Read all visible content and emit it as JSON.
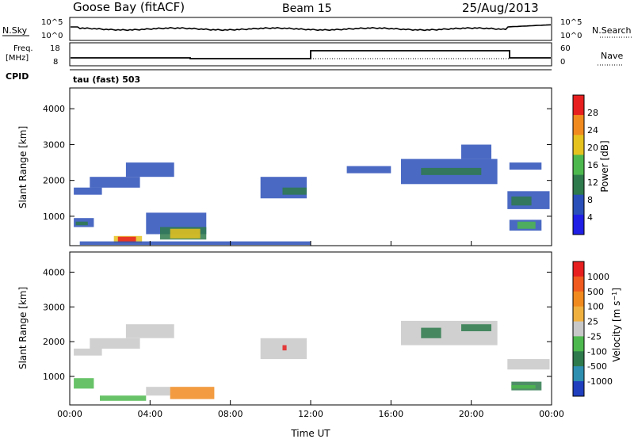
{
  "header": {
    "station": "Goose Bay (fitACF)",
    "beam": "Beam 15",
    "date": "25/Aug/2013"
  },
  "noise_panel": {
    "left_label": "N.Sky",
    "right_label": "N.Search",
    "left_ticks": [
      "10^5",
      "10^0"
    ],
    "right_ticks": [
      "10^5",
      "10^0"
    ]
  },
  "freq_panel": {
    "left_label_1": "Freq.",
    "left_label_2": "[MHz]",
    "left_ticks": [
      "18",
      "8"
    ],
    "right_label": "Nave",
    "right_ticks": [
      "60",
      "0"
    ],
    "cpid_label": "CPID",
    "cpid_value": "tau (fast) 503"
  },
  "chart_data": [
    {
      "type": "heatmap",
      "name": "power",
      "ylabel": "Slant Range [km]",
      "xlabel": "Time UT",
      "x_ticks": [
        "00:00",
        "04:00",
        "08:00",
        "12:00",
        "16:00",
        "20:00",
        "00:00"
      ],
      "y_ticks": [
        "1000",
        "2000",
        "3000",
        "4000"
      ],
      "xlim_hours": [
        0,
        24
      ],
      "ylim_km": [
        180,
        4580
      ],
      "colorbar": {
        "label": "Power [dB]",
        "ticks": [
          "4",
          "8",
          "12",
          "16",
          "20",
          "24",
          "28"
        ],
        "colors": [
          "#1f1fe6",
          "#2a4fb8",
          "#2e7a4c",
          "#4db84d",
          "#e6c21f",
          "#f08a1f",
          "#e81f1f"
        ]
      },
      "regions": [
        {
          "t": [
            0.2,
            1.6
          ],
          "r": [
            1600,
            1800
          ],
          "c": "#2a4fb8"
        },
        {
          "t": [
            1.0,
            3.5
          ],
          "r": [
            1800,
            2100
          ],
          "c": "#2a4fb8"
        },
        {
          "t": [
            2.8,
            5.2
          ],
          "r": [
            2100,
            2500
          ],
          "c": "#2a4fb8"
        },
        {
          "t": [
            0.2,
            1.2
          ],
          "r": [
            700,
            950
          ],
          "c": "#2a4fb8"
        },
        {
          "t": [
            0.3,
            0.9
          ],
          "r": [
            750,
            850
          ],
          "c": "#2e7a4c"
        },
        {
          "t": [
            3.8,
            6.8
          ],
          "r": [
            500,
            1100
          ],
          "c": "#2a4fb8"
        },
        {
          "t": [
            4.5,
            6.8
          ],
          "r": [
            350,
            700
          ],
          "c": "#2e7a4c"
        },
        {
          "t": [
            5.0,
            6.5
          ],
          "r": [
            380,
            650
          ],
          "c": "#e6c21f"
        },
        {
          "t": [
            2.2,
            3.6
          ],
          "r": [
            250,
            450
          ],
          "c": "#e6c21f"
        },
        {
          "t": [
            2.4,
            3.3
          ],
          "r": [
            280,
            430
          ],
          "c": "#e81f1f"
        },
        {
          "t": [
            0.5,
            12.0
          ],
          "r": [
            200,
            300
          ],
          "c": "#2a4fb8"
        },
        {
          "t": [
            9.5,
            11.8
          ],
          "r": [
            1500,
            2100
          ],
          "c": "#2a4fb8"
        },
        {
          "t": [
            10.6,
            11.8
          ],
          "r": [
            1600,
            1800
          ],
          "c": "#2e7a4c"
        },
        {
          "t": [
            13.8,
            16.0
          ],
          "r": [
            2200,
            2400
          ],
          "c": "#2a4fb8"
        },
        {
          "t": [
            16.5,
            21.3
          ],
          "r": [
            1900,
            2600
          ],
          "c": "#2a4fb8"
        },
        {
          "t": [
            17.5,
            20.5
          ],
          "r": [
            2150,
            2350
          ],
          "c": "#2e7a4c"
        },
        {
          "t": [
            19.5,
            21.0
          ],
          "r": [
            2600,
            3000
          ],
          "c": "#2a4fb8"
        },
        {
          "t": [
            21.8,
            23.9
          ],
          "r": [
            1200,
            1700
          ],
          "c": "#2a4fb8"
        },
        {
          "t": [
            22.0,
            23.0
          ],
          "r": [
            1300,
            1550
          ],
          "c": "#2e7a4c"
        },
        {
          "t": [
            21.9,
            23.5
          ],
          "r": [
            2300,
            2500
          ],
          "c": "#2a4fb8"
        },
        {
          "t": [
            21.9,
            23.5
          ],
          "r": [
            600,
            900
          ],
          "c": "#2a4fb8"
        },
        {
          "t": [
            22.3,
            23.2
          ],
          "r": [
            650,
            850
          ],
          "c": "#4db84d"
        }
      ]
    },
    {
      "type": "heatmap",
      "name": "velocity",
      "ylabel": "Slant Range [km]",
      "xlabel": "Time UT",
      "x_ticks": [
        "00:00",
        "04:00",
        "08:00",
        "12:00",
        "16:00",
        "20:00",
        "00:00"
      ],
      "y_ticks": [
        "1000",
        "2000",
        "3000",
        "4000"
      ],
      "xlim_hours": [
        0,
        24
      ],
      "ylim_km": [
        180,
        4580
      ],
      "colorbar": {
        "label": "Velocity [m s^-1]",
        "ticks": [
          "1000",
          "500",
          "100",
          "25",
          "-25",
          "-100",
          "-500",
          "-1000"
        ],
        "colors": [
          "#1f3fbf",
          "#2e8fb0",
          "#2e7a4c",
          "#4db84d",
          "#c8c8c8",
          "#f0b040",
          "#f08a1f",
          "#f05a1f",
          "#e81f1f"
        ]
      },
      "regions": [
        {
          "t": [
            0.2,
            1.6
          ],
          "r": [
            1600,
            1800
          ],
          "c": "#c8c8c8"
        },
        {
          "t": [
            1.0,
            3.5
          ],
          "r": [
            1800,
            2100
          ],
          "c": "#c8c8c8"
        },
        {
          "t": [
            2.8,
            5.2
          ],
          "r": [
            2100,
            2500
          ],
          "c": "#c8c8c8"
        },
        {
          "t": [
            0.2,
            1.2
          ],
          "r": [
            650,
            950
          ],
          "c": "#4db84d"
        },
        {
          "t": [
            1.5,
            3.8
          ],
          "r": [
            300,
            450
          ],
          "c": "#4db84d"
        },
        {
          "t": [
            3.8,
            5.0
          ],
          "r": [
            450,
            700
          ],
          "c": "#c8c8c8"
        },
        {
          "t": [
            5.0,
            7.2
          ],
          "r": [
            350,
            700
          ],
          "c": "#f08a1f"
        },
        {
          "t": [
            9.5,
            11.8
          ],
          "r": [
            1500,
            2100
          ],
          "c": "#c8c8c8"
        },
        {
          "t": [
            10.6,
            10.8
          ],
          "r": [
            1750,
            1900
          ],
          "c": "#e81f1f"
        },
        {
          "t": [
            16.5,
            21.3
          ],
          "r": [
            1900,
            2600
          ],
          "c": "#c8c8c8"
        },
        {
          "t": [
            17.5,
            18.5
          ],
          "r": [
            2100,
            2400
          ],
          "c": "#2e7a4c"
        },
        {
          "t": [
            19.5,
            21.0
          ],
          "r": [
            2300,
            2500
          ],
          "c": "#2e7a4c"
        },
        {
          "t": [
            21.8,
            23.9
          ],
          "r": [
            1200,
            1500
          ],
          "c": "#c8c8c8"
        },
        {
          "t": [
            22.0,
            23.5
          ],
          "r": [
            600,
            850
          ],
          "c": "#2e7a4c"
        },
        {
          "t": [
            22.0,
            23.2
          ],
          "r": [
            650,
            750
          ],
          "c": "#4db84d"
        }
      ]
    }
  ]
}
